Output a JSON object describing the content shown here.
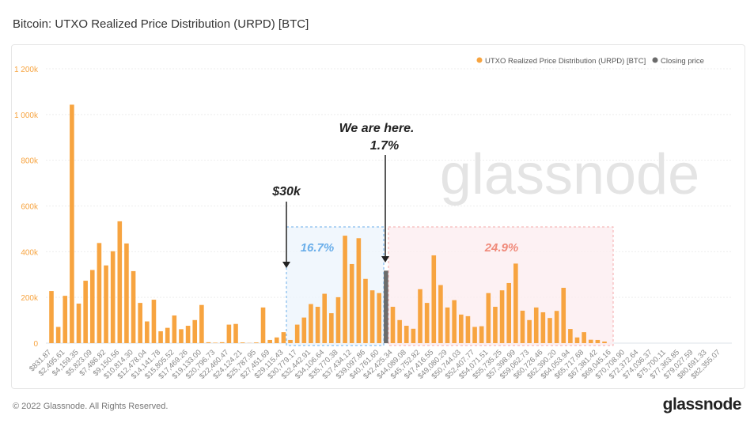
{
  "title": "Bitcoin: UTXO Realized Price Distribution (URPD) [BTC]",
  "footer": {
    "copyright": "© 2022 Glassnode. All Rights Reserved.",
    "logo": "glassnode"
  },
  "watermark": "glassnode",
  "colors": {
    "bar": "#f7a440",
    "closing": "#6b6b6b",
    "blue_zone": "#6aaeea",
    "red_zone": "#f08a7a"
  },
  "chart_data": {
    "type": "bar",
    "title": "Bitcoin: UTXO Realized Price Distribution (URPD) [BTC]",
    "legend": {
      "placement": "top-right",
      "entries": [
        "UTXO Realized Price Distribution (URPD) [BTC]",
        "Closing price"
      ]
    },
    "grid": true,
    "ylim": [
      0,
      1200000
    ],
    "yticks": [
      "0",
      "200k",
      "400k",
      "600k",
      "800k",
      "1 000k",
      "1 200k"
    ],
    "bucket_step": 831.87,
    "xtick_labels": [
      "$831.87",
      "$2,495.61",
      "$4,159.35",
      "$5,823.09",
      "$7,486.82",
      "$9,150.56",
      "$10,814.30",
      "$12,478.04",
      "$14,141.78",
      "$15,805.52",
      "$17,469.26",
      "$19,133.00",
      "$20,796.73",
      "$22,460.47",
      "$24,124.21",
      "$25,787.95",
      "$27,451.69",
      "$29,115.43",
      "$30,779.17",
      "$32,442.91",
      "$34,106.64",
      "$35,770.38",
      "$37,434.12",
      "$39,097.86",
      "$40,761.60",
      "$42,425.34",
      "$44,089.08",
      "$45,752.82",
      "$47,416.55",
      "$49,080.29",
      "$50,744.03",
      "$52,407.77",
      "$54,071.51",
      "$55,735.25",
      "$57,398.99",
      "$59,062.73",
      "$60,726.46",
      "$62,390.20",
      "$64,053.94",
      "$65,717.68",
      "$67,381.42",
      "$69,045.16",
      "$70,708.90",
      "$72,372.64",
      "$74,036.37",
      "$75,700.11",
      "$77,363.85",
      "$79,027.59",
      "$80,691.33",
      "$82,355.07"
    ],
    "values_k": [
      228,
      71,
      207,
      1043,
      173,
      273,
      320,
      438,
      340,
      402,
      533,
      436,
      315,
      176,
      95,
      190,
      52,
      67,
      121,
      61,
      76,
      101,
      167,
      4,
      2,
      4,
      81,
      84,
      3,
      1,
      3,
      156,
      14,
      25,
      48,
      14,
      81,
      112,
      171,
      159,
      216,
      131,
      201,
      470,
      346,
      459,
      281,
      231,
      219,
      317,
      159,
      101,
      76,
      63,
      236,
      176,
      384,
      254,
      156,
      188,
      125,
      118,
      71,
      74,
      219,
      159,
      231,
      263,
      348,
      142,
      101,
      156,
      135,
      110,
      141,
      242,
      62,
      25,
      48,
      15,
      14,
      7,
      0,
      0,
      0,
      0,
      0,
      0,
      0,
      0,
      0,
      0,
      0,
      0,
      0,
      0,
      0,
      0,
      0
    ],
    "closing_price_bucket": 50,
    "annotations": {
      "thirty_k": "$30k",
      "here_line1": "We are here.",
      "here_line2": "1.7%",
      "blue_pct": "16.7%",
      "red_pct": "24.9%"
    }
  }
}
